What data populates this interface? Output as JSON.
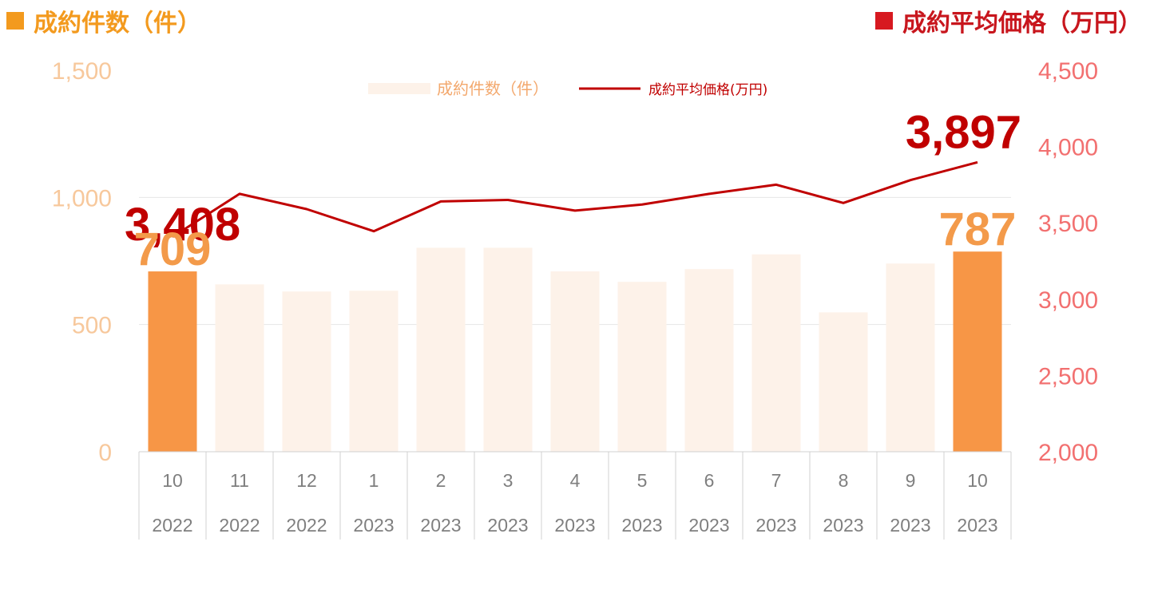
{
  "titles": {
    "left": "成約件数（件）",
    "right": "成約平均価格（万円）"
  },
  "colors": {
    "bar_faint": "#fdf2e9",
    "bar_highlight": "#f79646",
    "line": "#c00000",
    "left_axis": "#f7c89c",
    "right_axis": "#f27070",
    "grid": "#e6e6e6"
  },
  "legend": {
    "bar_label": "成約件数（件）",
    "line_label": "成約平均価格(万円)"
  },
  "chart_data": {
    "type": "bar+line",
    "categories": [
      {
        "month": "10",
        "year": "2022"
      },
      {
        "month": "11",
        "year": "2022"
      },
      {
        "month": "12",
        "year": "2022"
      },
      {
        "month": "1",
        "year": "2023"
      },
      {
        "month": "2",
        "year": "2023"
      },
      {
        "month": "3",
        "year": "2023"
      },
      {
        "month": "4",
        "year": "2023"
      },
      {
        "month": "5",
        "year": "2023"
      },
      {
        "month": "6",
        "year": "2023"
      },
      {
        "month": "7",
        "year": "2023"
      },
      {
        "month": "8",
        "year": "2023"
      },
      {
        "month": "9",
        "year": "2023"
      },
      {
        "month": "10",
        "year": "2023"
      }
    ],
    "bars": {
      "name": "成約件数（件）",
      "values": [
        709,
        658,
        630,
        633,
        802,
        802,
        709,
        668,
        718,
        776,
        548,
        740,
        787
      ],
      "highlight": [
        true,
        false,
        false,
        false,
        false,
        false,
        false,
        false,
        false,
        false,
        false,
        false,
        true
      ]
    },
    "line": {
      "name": "成約平均価格(万円)",
      "values": [
        3408,
        3690,
        3590,
        3445,
        3640,
        3650,
        3580,
        3620,
        3690,
        3750,
        3630,
        3780,
        3897
      ]
    },
    "y_left": {
      "min": 0,
      "max": 1500,
      "ticks": [
        0,
        500,
        1000,
        1500
      ],
      "tick_labels": [
        "0",
        "500",
        "1,000",
        "1,500"
      ]
    },
    "y_right": {
      "min": 2000,
      "max": 4500,
      "ticks": [
        2000,
        2500,
        3000,
        3500,
        4000,
        4500
      ],
      "tick_labels": [
        "2,000",
        "2,500",
        "3,000",
        "3,500",
        "4,000",
        "4,500"
      ]
    },
    "data_labels": [
      {
        "series": "line",
        "index": 0,
        "text": "3,408"
      },
      {
        "series": "bars",
        "index": 0,
        "text": "709"
      },
      {
        "series": "line",
        "index": 12,
        "text": "3,897"
      },
      {
        "series": "bars",
        "index": 12,
        "text": "787"
      }
    ],
    "grid": true,
    "legend_position": "top"
  }
}
